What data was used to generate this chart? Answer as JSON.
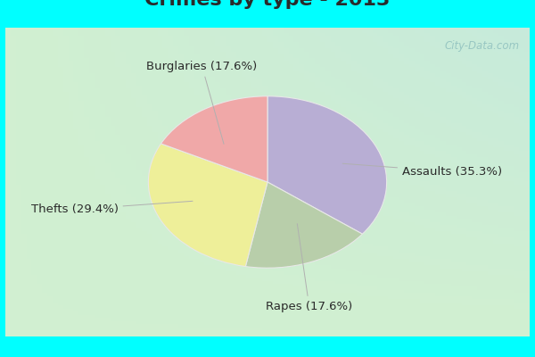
{
  "slices": [
    {
      "label": "Assaults",
      "pct": 35.3,
      "color": "#b8aed4"
    },
    {
      "label": "Rapes",
      "pct": 17.6,
      "color": "#b8ceaa"
    },
    {
      "label": "Thefts",
      "pct": 29.4,
      "color": "#eeef99"
    },
    {
      "label": "Burglaries",
      "pct": 17.6,
      "color": "#f0a8a8"
    }
  ],
  "border_color": "#00ffff",
  "bg_gradient_top_right": "#b8e8e0",
  "bg_gradient_bottom_left": "#c8e8cc",
  "title_fontsize": 16,
  "label_fontsize": 9.5,
  "title_color": "#2a2a2a",
  "label_color": "#2a2a2a",
  "watermark": "City-Data.com",
  "border_width": 8,
  "startangle": 90,
  "label_positions": {
    "Assaults": [
      1.55,
      0.12,
      "Assaults (35.3%)"
    ],
    "Rapes": [
      0.35,
      -1.45,
      "Rapes (17.6%)"
    ],
    "Thefts": [
      -1.62,
      -0.32,
      "Thefts (29.4%)"
    ],
    "Burglaries": [
      -0.55,
      1.35,
      "Burglaries (17.6%)"
    ]
  }
}
